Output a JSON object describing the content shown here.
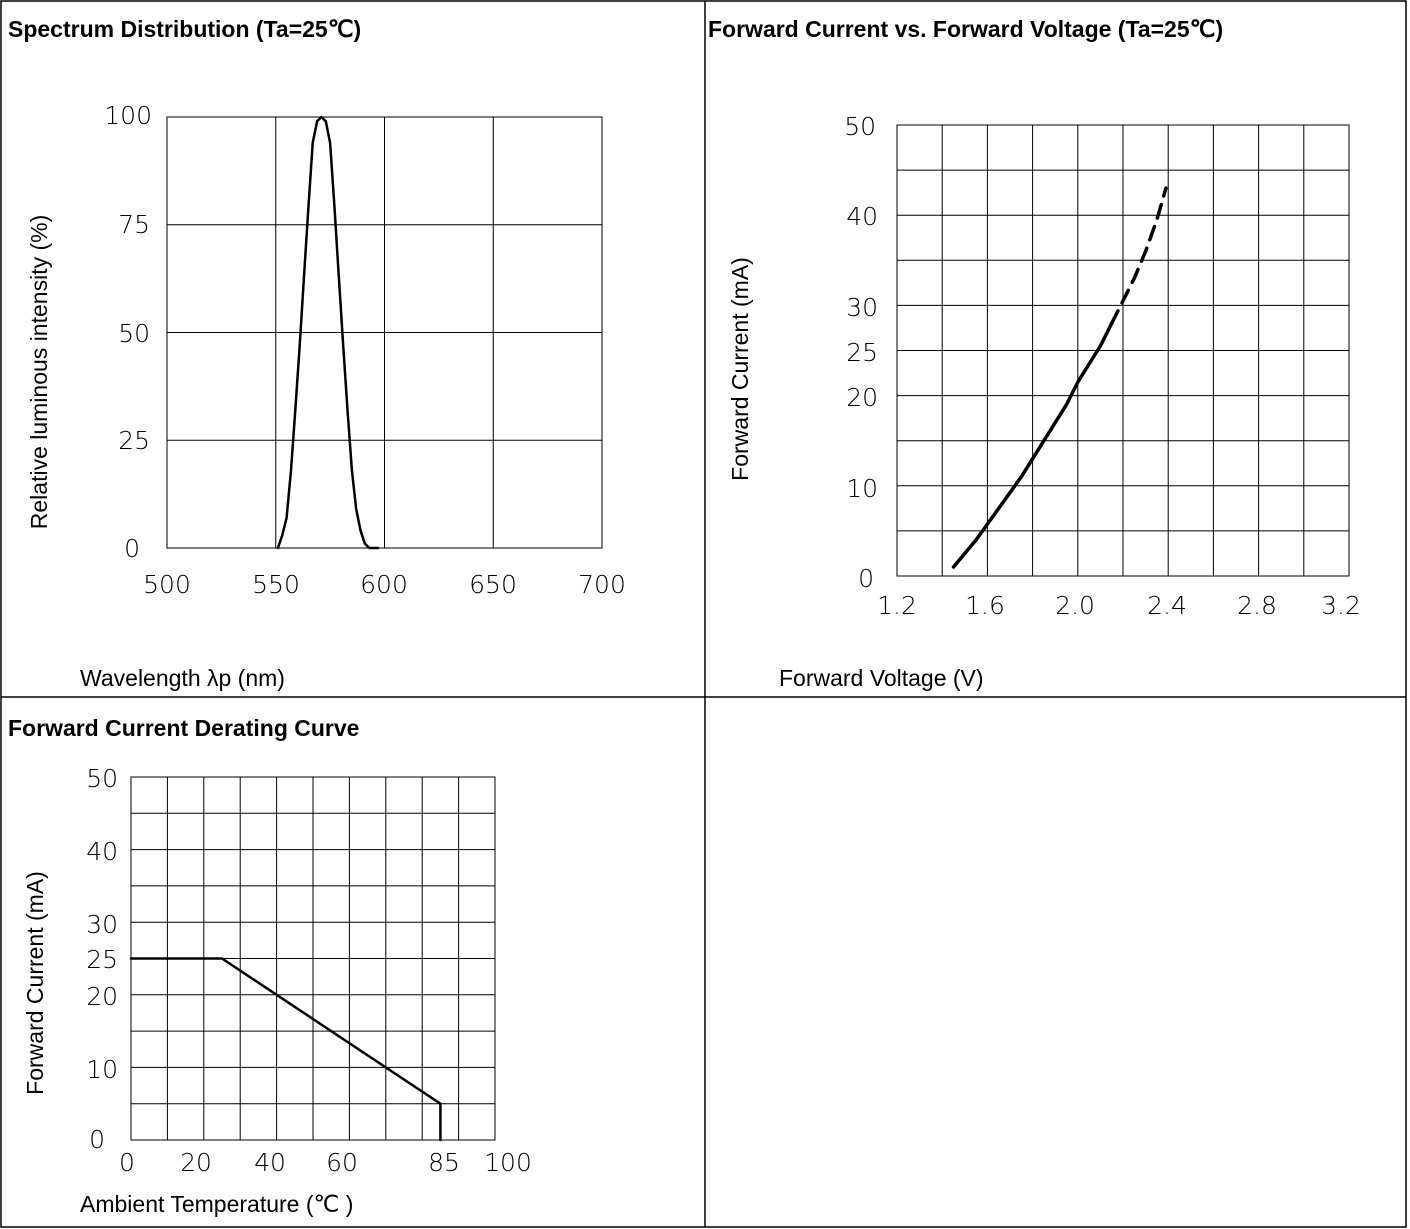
{
  "chart_data": [
    {
      "type": "line",
      "title": "Spectrum Distribution (Ta=25℃)",
      "xlabel": "Wavelength λp (nm)",
      "ylabel": "Relative luminous intensity (%)",
      "xlim": [
        500,
        700
      ],
      "ylim": [
        0,
        100
      ],
      "xticks": [
        "500",
        "550",
        "600",
        "650",
        "700"
      ],
      "yticks": [
        "0",
        "25",
        "50",
        "75",
        "100"
      ],
      "grid": true,
      "series": [
        {
          "x": [
            551,
            553,
            555,
            557,
            559,
            561,
            563,
            565,
            567,
            569,
            571,
            573,
            575,
            577,
            579,
            581,
            583,
            585,
            587,
            589,
            591,
            593,
            595,
            597
          ],
          "y": [
            0,
            3,
            7,
            18,
            32,
            47,
            63,
            79,
            94,
            99,
            100,
            99,
            94,
            79,
            63,
            47,
            32,
            18,
            9,
            4,
            1,
            0,
            0,
            0
          ]
        }
      ]
    },
    {
      "type": "line",
      "title": "Forward Current vs. Forward Voltage (Ta=25℃)",
      "xlabel": "Forward Voltage (V)",
      "ylabel": "Forward Current (mA)",
      "xlim": [
        1.2,
        3.2
      ],
      "ylim": [
        0,
        50
      ],
      "xticks": [
        "1.2",
        "1.6",
        "2.0",
        "2.4",
        "2.8",
        "3.2"
      ],
      "yticks": [
        "0",
        "10",
        "20",
        "25",
        "30",
        "40",
        "50"
      ],
      "grid": true,
      "series": [
        {
          "style": "solid",
          "x": [
            1.45,
            1.55,
            1.65,
            1.75,
            1.85,
            1.95,
            2.0,
            2.05,
            2.1,
            2.15
          ],
          "y": [
            1,
            4,
            7.5,
            11,
            15,
            19,
            21.5,
            23.5,
            25.5,
            28
          ]
        },
        {
          "style": "dashed",
          "x": [
            2.15,
            2.2,
            2.25,
            2.3,
            2.35,
            2.39
          ],
          "y": [
            28,
            30.5,
            33,
            36,
            39.5,
            43
          ]
        }
      ]
    },
    {
      "type": "line",
      "title": "Forward Current Derating Curve",
      "xlabel": "Ambient Temperature (℃ )",
      "ylabel": "Forward Current (mA)",
      "xlim": [
        0,
        100
      ],
      "ylim": [
        0,
        50
      ],
      "xticks": [
        "0",
        "20",
        "40",
        "60",
        "85",
        "100"
      ],
      "yticks": [
        "0",
        "10",
        "20",
        "25",
        "30",
        "40",
        "50"
      ],
      "grid": true,
      "series": [
        {
          "x": [
            0,
            25,
            85,
            85
          ],
          "y": [
            25,
            25,
            5,
            0
          ]
        }
      ]
    }
  ]
}
